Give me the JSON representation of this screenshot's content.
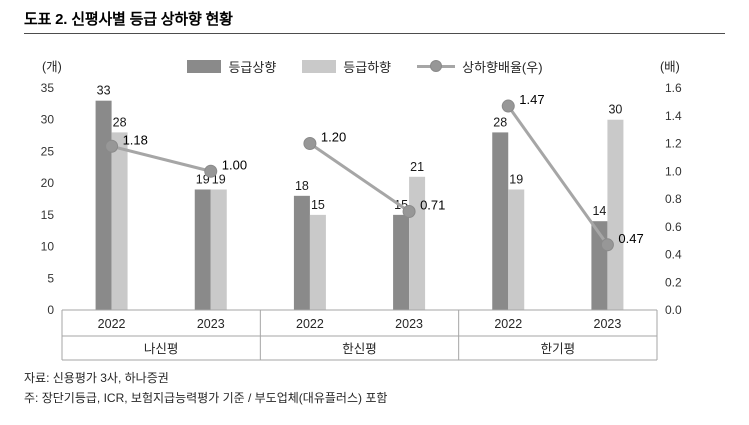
{
  "page": {
    "title": "도표 2. 신평사별 등급 상하향 현황",
    "footer": {
      "source": "자료: 신용평가 3사, 하나증권",
      "note": "주: 장단기등급, ICR, 보험지급능력평가 기준 / 부도업체(대유플러스) 포함"
    }
  },
  "chart_data": {
    "type": "bar",
    "overlay": "line",
    "title": "도표 2. 신평사별 등급 상하향 현황",
    "left_axis": {
      "unit": "(개)",
      "min": 0,
      "max": 35,
      "step": 5
    },
    "right_axis": {
      "unit": "(배)",
      "min": 0,
      "max": 1.6,
      "step": 0.2
    },
    "grid": "off",
    "legend_position": "top",
    "legend": [
      {
        "label": "등급상향",
        "type": "bar",
        "color": "#8a8a8a"
      },
      {
        "label": "등급하향",
        "type": "bar",
        "color": "#c9c9c9"
      },
      {
        "label": "상하향배율(우)",
        "type": "line",
        "color": "#a6a6a6",
        "marker_color": "#979797"
      }
    ],
    "groups": [
      {
        "name": "나신평",
        "years": [
          {
            "year": "2022",
            "up": 33,
            "down": 28,
            "ratio": 1.18,
            "ratio_label": "1.18"
          },
          {
            "year": "2023",
            "up": 19,
            "down": 19,
            "ratio": 1.0,
            "ratio_label": "1.00"
          }
        ]
      },
      {
        "name": "한신평",
        "years": [
          {
            "year": "2022",
            "up": 18,
            "down": 15,
            "ratio": 1.2,
            "ratio_label": "1.20"
          },
          {
            "year": "2023",
            "up": 15,
            "down": 21,
            "ratio": 0.71,
            "ratio_label": "0.71"
          }
        ]
      },
      {
        "name": "한기평",
        "years": [
          {
            "year": "2022",
            "up": 28,
            "down": 19,
            "ratio": 1.47,
            "ratio_label": "1.47"
          },
          {
            "year": "2023",
            "up": 14,
            "down": 30,
            "ratio": 0.47,
            "ratio_label": "0.47"
          }
        ]
      }
    ]
  }
}
